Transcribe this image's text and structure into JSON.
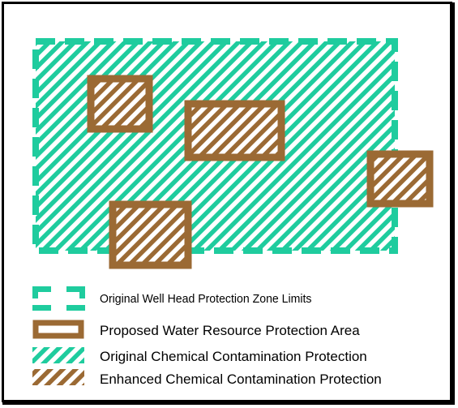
{
  "colors": {
    "frame": "#000000",
    "teal": "#1fcc9e",
    "brown": "#9b6a34",
    "background": "#ffffff"
  },
  "legend": {
    "well_head_zone": "Original Well Head Protection Zone Limits",
    "proposed_area": "Proposed Water Resource Protection Area",
    "original_protection": "Original Chemical Contamination Protection",
    "enhanced_protection": "Enhanced Chemical Contamination Protection"
  }
}
